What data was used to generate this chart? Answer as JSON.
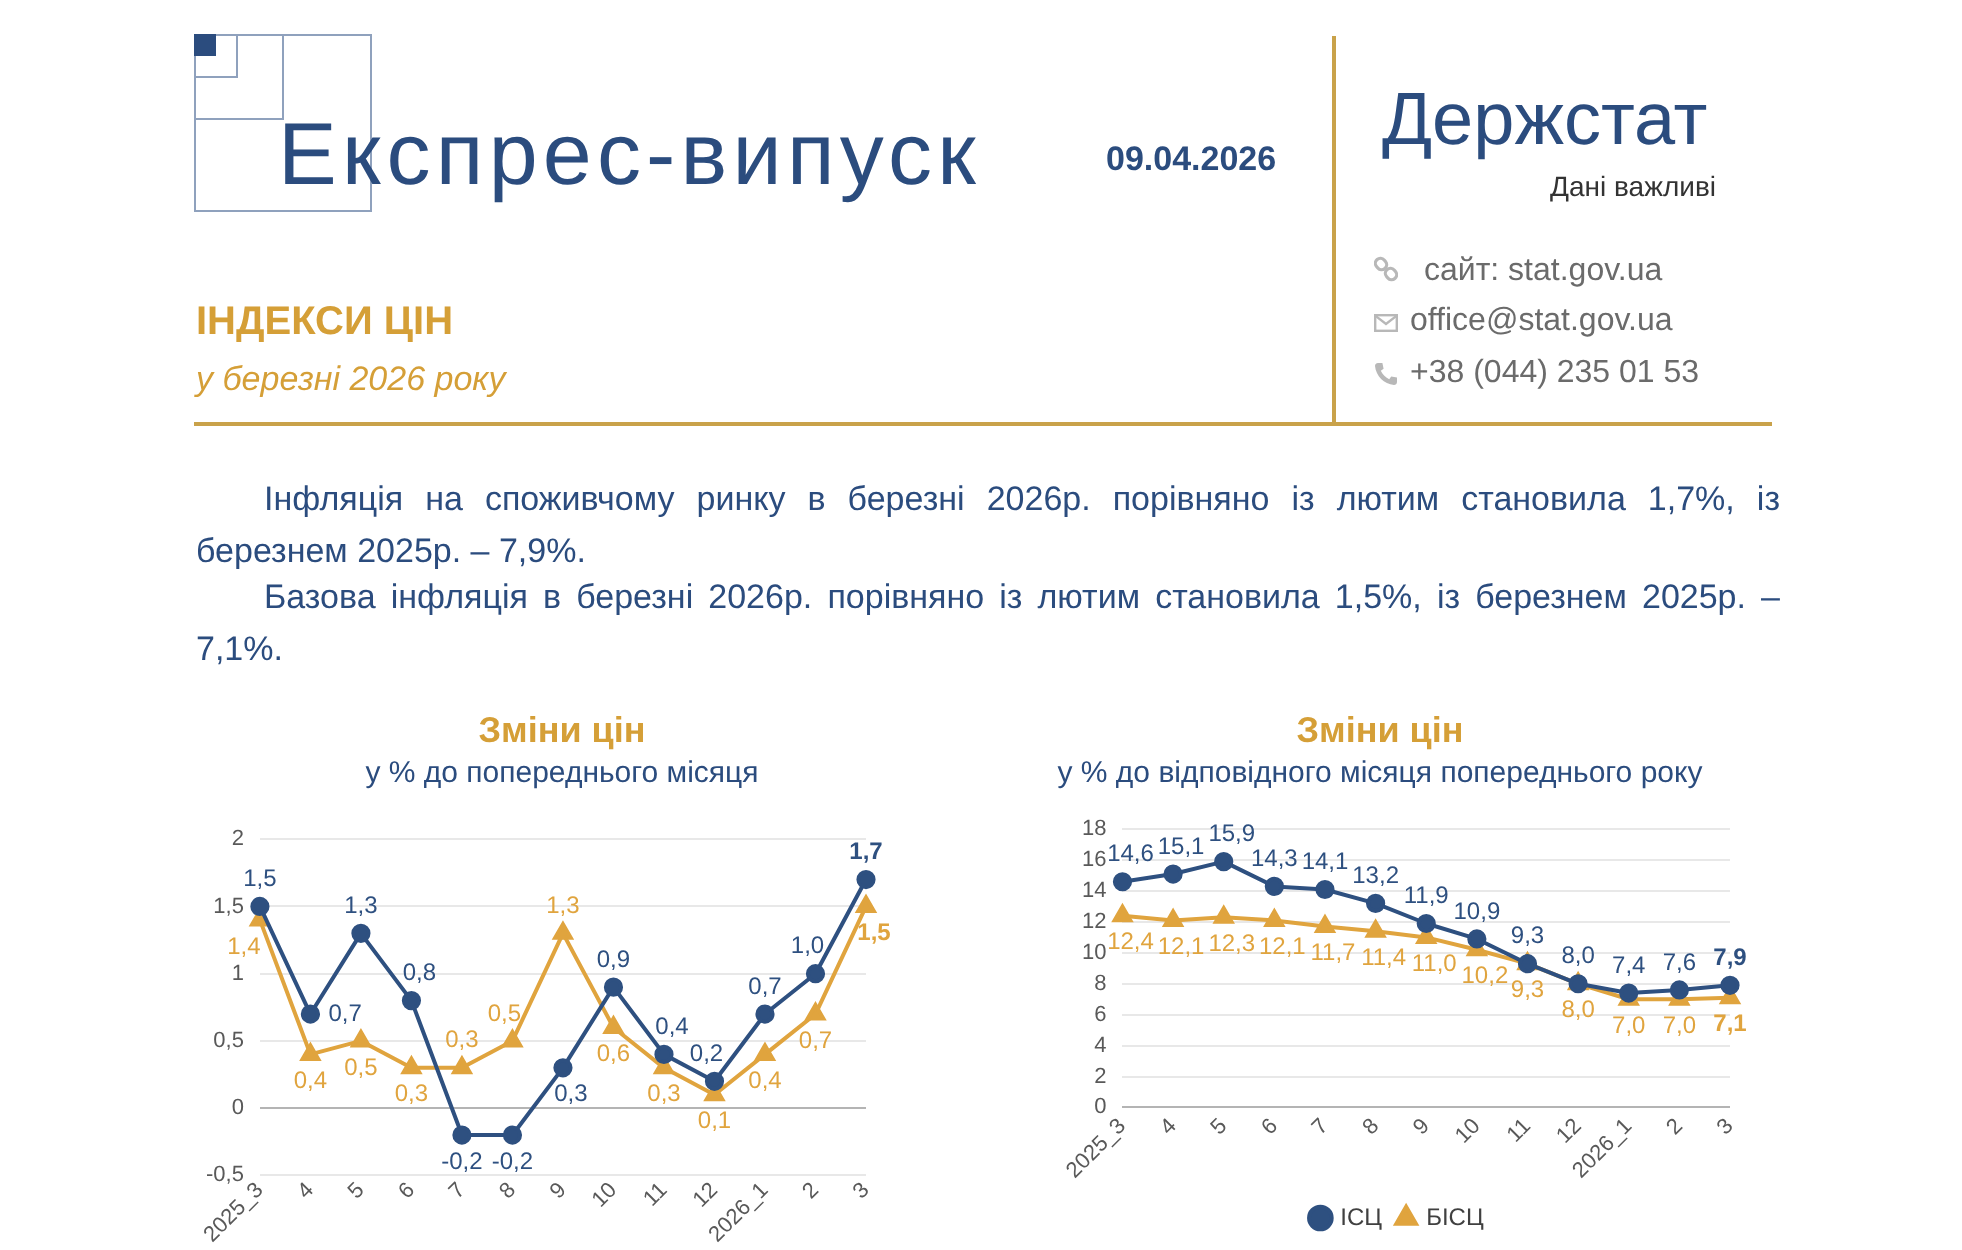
{
  "chart_data": [
    {
      "type": "other",
      "title": "ІНДЕКСИ ЦІН",
      "subtitle": "у березні 2026 року",
      "annotations": [
        "Експрес-випуск",
        "09.04.2026",
        "Держстат",
        "Дані важливі",
        "сайт: stat.gov.ua",
        "office@stat.gov.ua",
        "+38 (044) 235 01 53",
        "Інфляція на споживчому ринку в березні 2026р. порівняно із лютим становила 1,7%, із березнем 2025р. – 7,9%.",
        "Базова інфляція в березні 2026р. порівняно із лютим становила 1,5%, із березнем 2025р. – 7,1%."
      ]
    },
    {
      "type": "line",
      "title": "Зміни цін",
      "subtitle": "у % до попереднього місяця",
      "categories": [
        "2025_3",
        "4",
        "5",
        "6",
        "7",
        "8",
        "9",
        "10",
        "11",
        "12",
        "2026_1",
        "2",
        "3"
      ],
      "series": [
        {
          "color": "#2e5080",
          "marker": "circle",
          "values": [
            1.5,
            0.7,
            1.3,
            0.8,
            -0.2,
            -0.2,
            0.3,
            0.9,
            0.4,
            0.2,
            0.7,
            1.0,
            1.7
          ],
          "value_labels": [
            "1,5",
            "0,7",
            "1,3",
            "0,8",
            "-0,2",
            "-0,2",
            "0,3",
            "0,9",
            "0,4",
            "0,2",
            "0,7",
            "1,0",
            "1,7"
          ]
        },
        {
          "color": "#e0a43e",
          "marker": "triangle",
          "values": [
            1.4,
            0.4,
            0.5,
            0.3,
            0.3,
            0.5,
            1.3,
            0.6,
            0.3,
            0.1,
            0.4,
            0.7,
            1.5
          ],
          "value_labels": [
            "1,4",
            "0,4",
            "0,5",
            "0,3",
            "0,3",
            "0,5",
            "1,3",
            "0,6",
            "0,3",
            "0,1",
            "0,4",
            "0,7",
            "1,5"
          ]
        }
      ],
      "ylim": [
        -0.5,
        2
      ],
      "yticks": [
        {
          "value": -0.5,
          "label": "-0,5"
        },
        0,
        {
          "value": 0.5,
          "label": "0,5"
        },
        1,
        {
          "value": 1.5,
          "label": "1,5"
        },
        2
      ],
      "grid": "y",
      "legend": false
    },
    {
      "type": "line",
      "title": "Зміни цін",
      "subtitle": "у % до відповідного місяця попереднього року",
      "categories": [
        "2025_3",
        "4",
        "5",
        "6",
        "7",
        "8",
        "9",
        "10",
        "11",
        "12",
        "2026_1",
        "2",
        "3"
      ],
      "series": [
        {
          "name": "ІСЦ",
          "color": "#2e5080",
          "marker": "circle",
          "values": [
            14.6,
            15.1,
            15.9,
            14.3,
            14.1,
            13.2,
            11.9,
            10.9,
            9.3,
            8.0,
            7.4,
            7.6,
            7.9
          ],
          "value_labels": [
            "14,6",
            "15,1",
            "15,9",
            "14,3",
            "14,1",
            "13,2",
            "11,9",
            "10,9",
            "9,3",
            "8,0",
            "7,4",
            "7,6",
            "7,9"
          ]
        },
        {
          "name": "БІСЦ",
          "color": "#e0a43e",
          "marker": "triangle",
          "values": [
            12.4,
            12.1,
            12.3,
            12.1,
            11.7,
            11.4,
            11.0,
            10.2,
            9.3,
            8.0,
            7.0,
            7.0,
            7.1
          ],
          "value_labels": [
            "12,4",
            "12,1",
            "12,3",
            "12,1",
            "11,7",
            "11,4",
            "11,0",
            "10,2",
            "9,3",
            "8,0",
            "7,0",
            "7,0",
            "7,1"
          ]
        }
      ],
      "ylim": [
        0,
        18
      ],
      "yticks": [
        0,
        2,
        4,
        6,
        8,
        10,
        12,
        14,
        16,
        18
      ],
      "grid": "y",
      "legend": "bottom"
    }
  ]
}
